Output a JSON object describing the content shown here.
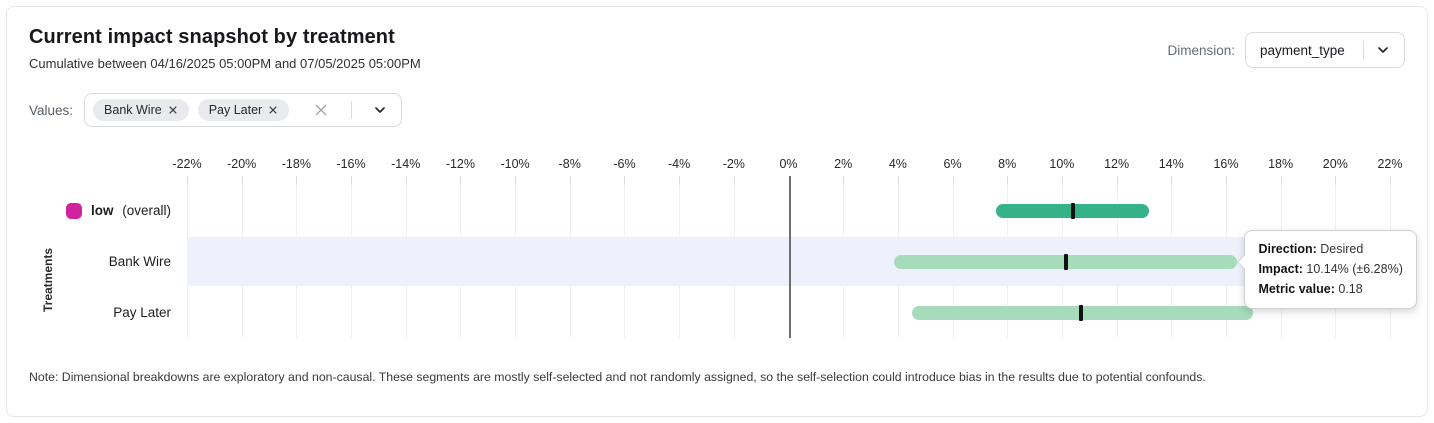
{
  "header": {
    "title": "Current impact snapshot by treatment",
    "subtitle": "Cumulative between 04/16/2025 05:00PM and 07/05/2025 05:00PM"
  },
  "dimension": {
    "label": "Dimension:",
    "selected": "payment_type"
  },
  "values_filter": {
    "label": "Values:",
    "chips": [
      {
        "label": "Bank Wire"
      },
      {
        "label": "Pay Later"
      }
    ]
  },
  "chart_data": {
    "type": "bar",
    "subtype": "horizontal-interval",
    "title": "Current impact snapshot by treatment",
    "xlabel": "",
    "ylabel": "Treatments",
    "xlim": [
      -22,
      22
    ],
    "x_ticks_percent": [
      -22,
      -20,
      -18,
      -16,
      -14,
      -12,
      -10,
      -8,
      -6,
      -4,
      -2,
      0,
      2,
      4,
      6,
      8,
      10,
      12,
      14,
      16,
      18,
      20,
      22
    ],
    "grid": true,
    "rows": [
      {
        "label": "low",
        "suffix": "(overall)",
        "swatch_color": "#d2239e",
        "bar_color": "#35b287",
        "impact_pct": 10.4,
        "ci_low_pct": 7.6,
        "ci_high_pct": 13.2,
        "highlighted": false
      },
      {
        "label": "Bank Wire",
        "suffix": "",
        "swatch_color": "",
        "bar_color": "#a6dcba",
        "impact_pct": 10.14,
        "ci_low_pct": 3.86,
        "ci_high_pct": 16.42,
        "highlighted": true
      },
      {
        "label": "Pay Later",
        "suffix": "",
        "swatch_color": "",
        "bar_color": "#a6dcba",
        "impact_pct": 10.7,
        "ci_low_pct": 4.5,
        "ci_high_pct": 17.0,
        "highlighted": false
      }
    ],
    "colors": {
      "highlight_band": "#eef0fb",
      "gridline": "#f0f0f0",
      "zero_line": "#6f6f6f",
      "marker": "#101114"
    }
  },
  "tooltip": {
    "anchor_row_index": 1,
    "lines": [
      {
        "label": "Direction:",
        "value": "Desired"
      },
      {
        "label": "Impact:",
        "value": "10.14% (±6.28%)"
      },
      {
        "label": "Metric value:",
        "value": "0.18"
      }
    ]
  },
  "note": "Note: Dimensional breakdowns are exploratory and non-causal. These segments are mostly self-selected and not randomly assigned, so the self-selection could introduce bias in the results due to potential confounds."
}
